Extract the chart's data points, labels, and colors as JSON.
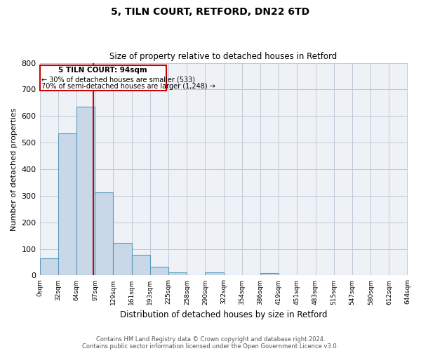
{
  "title": "5, TILN COURT, RETFORD, DN22 6TD",
  "subtitle": "Size of property relative to detached houses in Retford",
  "xlabel": "Distribution of detached houses by size in Retford",
  "ylabel": "Number of detached properties",
  "bin_labels": [
    "0sqm",
    "32sqm",
    "64sqm",
    "97sqm",
    "129sqm",
    "161sqm",
    "193sqm",
    "225sqm",
    "258sqm",
    "290sqm",
    "322sqm",
    "354sqm",
    "386sqm",
    "419sqm",
    "451sqm",
    "483sqm",
    "515sqm",
    "547sqm",
    "580sqm",
    "612sqm",
    "644sqm"
  ],
  "bar_values": [
    65,
    535,
    635,
    312,
    122,
    77,
    32,
    13,
    0,
    13,
    0,
    0,
    10,
    0,
    0,
    0,
    0,
    0,
    0,
    0
  ],
  "bar_color": "#c8d8e8",
  "bar_edgecolor": "#5a9aba",
  "property_line_x": 94,
  "ylim": [
    0,
    800
  ],
  "yticks": [
    0,
    100,
    200,
    300,
    400,
    500,
    600,
    700,
    800
  ],
  "annotation_title": "5 TILN COURT: 94sqm",
  "annotation_line1": "← 30% of detached houses are smaller (533)",
  "annotation_line2": "70% of semi-detached houses are larger (1,248) →",
  "annotation_box_edgecolor": "#cc0000",
  "vline_color": "#cc0000",
  "footer_line1": "Contains HM Land Registry data © Crown copyright and database right 2024.",
  "footer_line2": "Contains public sector information licensed under the Open Government Licence v3.0.",
  "bg_color": "#eef2f7",
  "grid_color": "#c0c8d8",
  "bin_edges": [
    0,
    32,
    64,
    97,
    129,
    161,
    193,
    225,
    258,
    290,
    322,
    354,
    386,
    419,
    451,
    483,
    515,
    547,
    580,
    612,
    644
  ]
}
